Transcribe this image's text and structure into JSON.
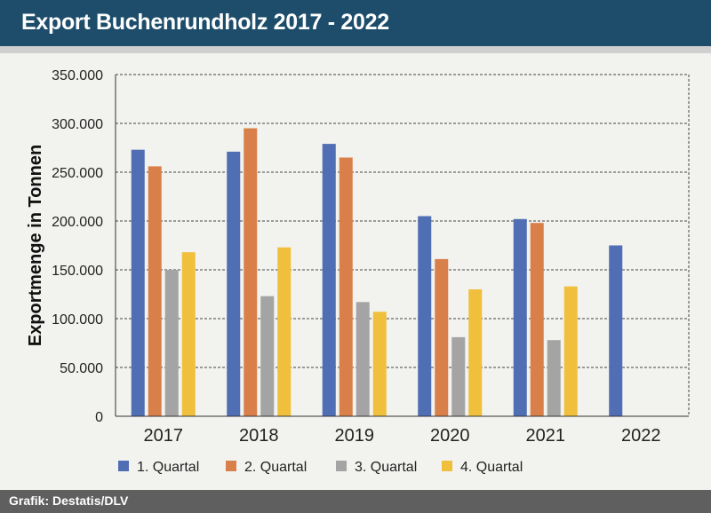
{
  "header": {
    "title": "Export Buchenrundholz 2017 - 2022"
  },
  "footer": {
    "source": "Grafik: Destatis/DLV"
  },
  "colors": {
    "header_bg": "#1d4d6a",
    "q1": "#4f6eb4",
    "q2": "#d9804a",
    "q3": "#a4a4a4",
    "q4": "#f0c03c"
  },
  "chart_data": {
    "type": "bar",
    "title": "Export Buchenrundholz 2017 - 2022",
    "xlabel": "",
    "ylabel": "Exportmenge in Tonnen",
    "categories": [
      "2017",
      "2018",
      "2019",
      "2020",
      "2021",
      "2022"
    ],
    "ylim": [
      0,
      350000
    ],
    "yticks": [
      0,
      50000,
      100000,
      150000,
      200000,
      250000,
      300000,
      350000
    ],
    "ytick_labels": [
      "0",
      "50.000",
      "100.000",
      "150.000",
      "200.000",
      "250.000",
      "300.000",
      "350.000"
    ],
    "grid": true,
    "legend_position": "bottom",
    "series": [
      {
        "name": "1. Quartal",
        "color": "#4f6eb4",
        "values": [
          273000,
          271000,
          279000,
          205000,
          202000,
          175000
        ]
      },
      {
        "name": "2. Quartal",
        "color": "#d9804a",
        "values": [
          256000,
          295000,
          265000,
          161000,
          198000,
          null
        ]
      },
      {
        "name": "3. Quartal",
        "color": "#a4a4a4",
        "values": [
          150000,
          123000,
          117000,
          81000,
          78000,
          null
        ]
      },
      {
        "name": "4. Quartal",
        "color": "#f0c03c",
        "values": [
          168000,
          173000,
          107000,
          130000,
          133000,
          null
        ]
      }
    ]
  }
}
